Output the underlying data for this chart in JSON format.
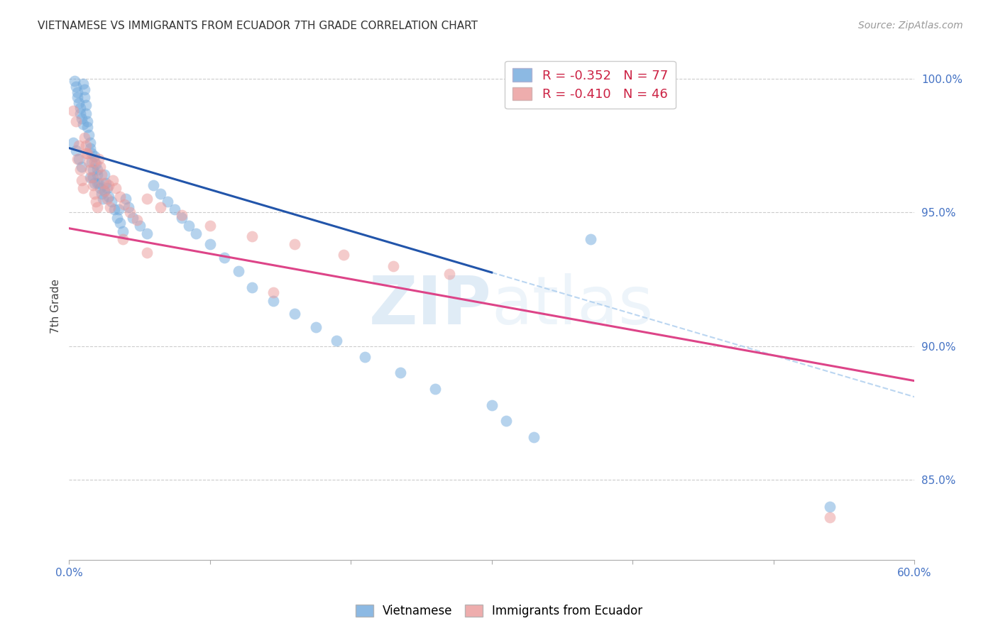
{
  "title": "VIETNAMESE VS IMMIGRANTS FROM ECUADOR 7TH GRADE CORRELATION CHART",
  "source": "Source: ZipAtlas.com",
  "ylabel": "7th Grade",
  "ytick_labels": [
    "85.0%",
    "90.0%",
    "95.0%",
    "100.0%"
  ],
  "ytick_values": [
    0.85,
    0.9,
    0.95,
    1.0
  ],
  "xmin": 0.0,
  "xmax": 0.6,
  "ymin": 0.82,
  "ymax": 1.01,
  "blue_color": "#6fa8dc",
  "pink_color": "#ea9999",
  "blue_line_color": "#2255aa",
  "pink_line_color": "#dd4488",
  "dash_color": "#aaccee",
  "watermark_zip": "ZIP",
  "watermark_atlas": "atlas",
  "blue_intercept": 0.974,
  "blue_slope": -0.155,
  "pink_intercept": 0.944,
  "pink_slope": -0.095,
  "blue_solid_xend": 0.3,
  "blue_dash_xstart": 0.3,
  "blue_dash_xend": 0.6,
  "legend_labels": [
    "R = -0.352   N = 77",
    "R = -0.410   N = 46"
  ],
  "bottom_legend_labels": [
    "Vietnamese",
    "Immigrants from Ecuador"
  ],
  "blue_points_x": [
    0.004,
    0.005,
    0.006,
    0.006,
    0.007,
    0.008,
    0.008,
    0.009,
    0.01,
    0.01,
    0.011,
    0.011,
    0.012,
    0.012,
    0.013,
    0.013,
    0.014,
    0.015,
    0.015,
    0.016,
    0.016,
    0.017,
    0.017,
    0.018,
    0.018,
    0.019,
    0.02,
    0.02,
    0.021,
    0.022,
    0.023,
    0.024,
    0.025,
    0.026,
    0.027,
    0.028,
    0.03,
    0.032,
    0.034,
    0.036,
    0.038,
    0.04,
    0.042,
    0.045,
    0.05,
    0.055,
    0.06,
    0.065,
    0.07,
    0.075,
    0.08,
    0.085,
    0.09,
    0.1,
    0.11,
    0.12,
    0.13,
    0.145,
    0.16,
    0.175,
    0.19,
    0.21,
    0.235,
    0.26,
    0.3,
    0.31,
    0.33,
    0.003,
    0.005,
    0.007,
    0.009,
    0.015,
    0.02,
    0.025,
    0.035,
    0.37,
    0.54
  ],
  "blue_points_y": [
    0.999,
    0.997,
    0.995,
    0.993,
    0.991,
    0.989,
    0.987,
    0.985,
    0.983,
    0.998,
    0.996,
    0.993,
    0.99,
    0.987,
    0.984,
    0.982,
    0.979,
    0.976,
    0.974,
    0.972,
    0.969,
    0.966,
    0.963,
    0.961,
    0.971,
    0.968,
    0.966,
    0.964,
    0.961,
    0.959,
    0.957,
    0.955,
    0.964,
    0.961,
    0.959,
    0.956,
    0.954,
    0.951,
    0.948,
    0.946,
    0.943,
    0.955,
    0.952,
    0.948,
    0.945,
    0.942,
    0.96,
    0.957,
    0.954,
    0.951,
    0.948,
    0.945,
    0.942,
    0.938,
    0.933,
    0.928,
    0.922,
    0.917,
    0.912,
    0.907,
    0.902,
    0.896,
    0.89,
    0.884,
    0.878,
    0.872,
    0.866,
    0.976,
    0.973,
    0.97,
    0.967,
    0.963,
    0.961,
    0.958,
    0.951,
    0.94,
    0.84
  ],
  "pink_points_x": [
    0.003,
    0.005,
    0.006,
    0.008,
    0.009,
    0.01,
    0.011,
    0.012,
    0.013,
    0.014,
    0.015,
    0.016,
    0.017,
    0.018,
    0.019,
    0.02,
    0.021,
    0.022,
    0.023,
    0.024,
    0.025,
    0.027,
    0.029,
    0.031,
    0.033,
    0.036,
    0.039,
    0.043,
    0.048,
    0.055,
    0.065,
    0.08,
    0.1,
    0.13,
    0.16,
    0.195,
    0.23,
    0.27,
    0.007,
    0.012,
    0.018,
    0.028,
    0.038,
    0.055,
    0.145,
    0.54
  ],
  "pink_points_y": [
    0.988,
    0.984,
    0.97,
    0.966,
    0.962,
    0.959,
    0.978,
    0.975,
    0.972,
    0.969,
    0.966,
    0.963,
    0.96,
    0.957,
    0.954,
    0.952,
    0.97,
    0.967,
    0.964,
    0.961,
    0.958,
    0.955,
    0.952,
    0.962,
    0.959,
    0.956,
    0.953,
    0.95,
    0.947,
    0.955,
    0.952,
    0.949,
    0.945,
    0.941,
    0.938,
    0.934,
    0.93,
    0.927,
    0.975,
    0.972,
    0.969,
    0.96,
    0.94,
    0.935,
    0.92,
    0.836
  ]
}
